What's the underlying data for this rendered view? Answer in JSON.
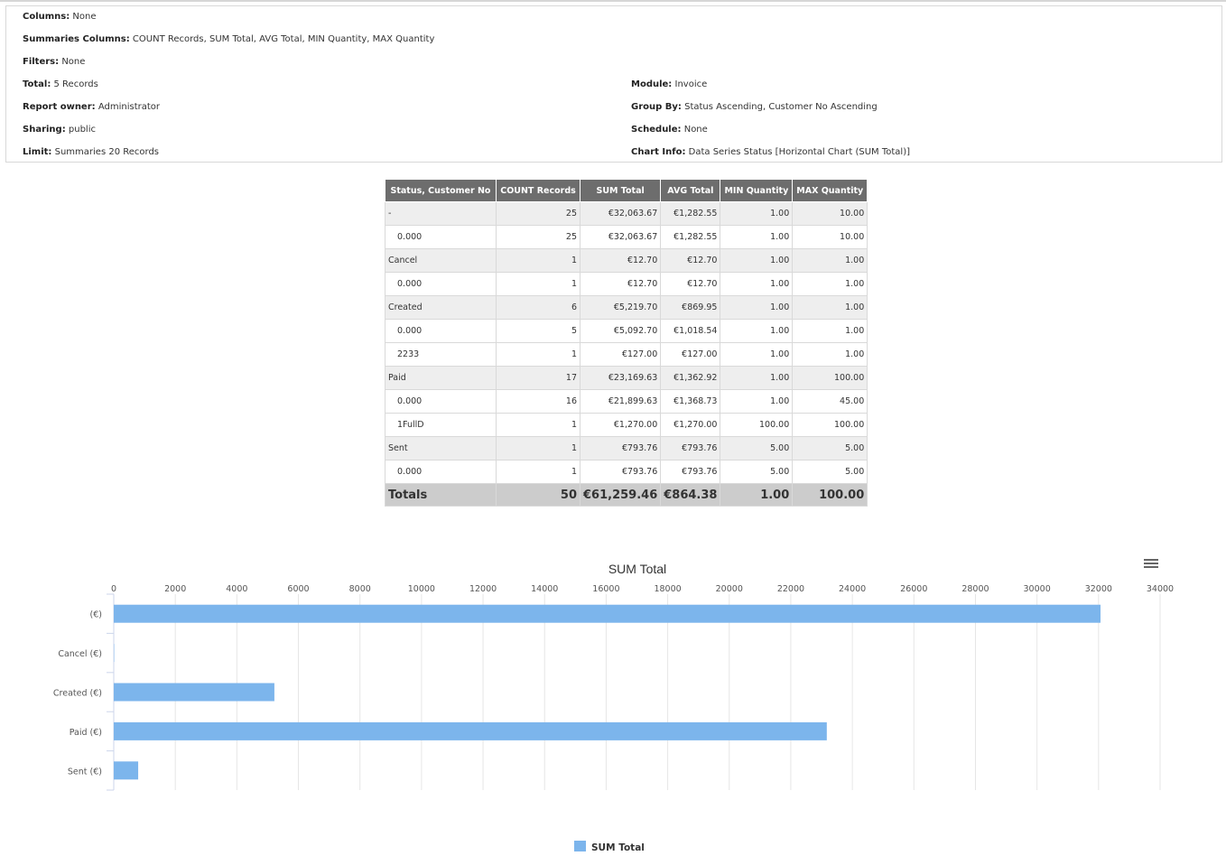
{
  "info": {
    "left": [
      {
        "label": "Columns:",
        "value": "None"
      },
      {
        "label": "Summaries Columns:",
        "value": "COUNT Records, SUM Total, AVG Total, MIN Quantity, MAX Quantity"
      },
      {
        "label": "Filters:",
        "value": "None"
      },
      {
        "label": "Total:",
        "value": "5 Records"
      },
      {
        "label": "Report owner:",
        "value": "Administrator"
      },
      {
        "label": "Sharing:",
        "value": "public"
      },
      {
        "label": "Limit:",
        "value": "Summaries 20 Records"
      }
    ],
    "right": [
      {
        "label": "Module:",
        "value": "Invoice"
      },
      {
        "label": "Group By:",
        "value": "Status Ascending, Customer No Ascending"
      },
      {
        "label": "Schedule:",
        "value": "None"
      },
      {
        "label": "Chart Info:",
        "value": "Data Series Status [Horizontal Chart (SUM Total)]"
      }
    ]
  },
  "table": {
    "headers": [
      "Status, Customer No",
      "COUNT Records",
      "SUM Total",
      "AVG Total",
      "MIN Quantity",
      "MAX Quantity"
    ],
    "rows": [
      {
        "type": "group",
        "cells": [
          "-",
          "25",
          "€32,063.67",
          "€1,282.55",
          "1.00",
          "10.00"
        ]
      },
      {
        "type": "sub",
        "cells": [
          "0.000",
          "25",
          "€32,063.67",
          "€1,282.55",
          "1.00",
          "10.00"
        ]
      },
      {
        "type": "group",
        "cells": [
          "Cancel",
          "1",
          "€12.70",
          "€12.70",
          "1.00",
          "1.00"
        ]
      },
      {
        "type": "sub",
        "cells": [
          "0.000",
          "1",
          "€12.70",
          "€12.70",
          "1.00",
          "1.00"
        ]
      },
      {
        "type": "group",
        "cells": [
          "Created",
          "6",
          "€5,219.70",
          "€869.95",
          "1.00",
          "1.00"
        ]
      },
      {
        "type": "sub",
        "cells": [
          "0.000",
          "5",
          "€5,092.70",
          "€1,018.54",
          "1.00",
          "1.00"
        ]
      },
      {
        "type": "sub",
        "cells": [
          "2233",
          "1",
          "€127.00",
          "€127.00",
          "1.00",
          "1.00"
        ]
      },
      {
        "type": "group",
        "cells": [
          "Paid",
          "17",
          "€23,169.63",
          "€1,362.92",
          "1.00",
          "100.00"
        ]
      },
      {
        "type": "sub",
        "cells": [
          "0.000",
          "16",
          "€21,899.63",
          "€1,368.73",
          "1.00",
          "45.00"
        ]
      },
      {
        "type": "sub",
        "cells": [
          "1FullD",
          "1",
          "€1,270.00",
          "€1,270.00",
          "100.00",
          "100.00"
        ]
      },
      {
        "type": "group",
        "cells": [
          "Sent",
          "1",
          "€793.76",
          "€793.76",
          "5.00",
          "5.00"
        ]
      },
      {
        "type": "sub",
        "cells": [
          "0.000",
          "1",
          "€793.76",
          "€793.76",
          "5.00",
          "5.00"
        ]
      }
    ],
    "totals": [
      "Totals",
      "50",
      "€61,259.46",
      "€864.38",
      "1.00",
      "100.00"
    ]
  },
  "chart_data": {
    "type": "bar",
    "orientation": "horizontal",
    "title": "SUM Total",
    "categories": [
      "(€)",
      "Cancel (€)",
      "Created (€)",
      "Paid (€)",
      "Sent (€)"
    ],
    "series": [
      {
        "name": "SUM Total",
        "values": [
          32063.67,
          12.7,
          5219.7,
          23169.63,
          793.76
        ]
      }
    ],
    "xlim": [
      0,
      34000
    ],
    "ticks": [
      "0",
      "2000",
      "4000",
      "6000",
      "8000",
      "10000",
      "12000",
      "14000",
      "16000",
      "18000",
      "20000",
      "22000",
      "24000",
      "26000",
      "28000",
      "30000",
      "32000",
      "34000"
    ],
    "grid": true,
    "legend": "bottom-center",
    "bar_color": "#7cb5ec",
    "menu_icon": "hamburger-menu-icon"
  }
}
